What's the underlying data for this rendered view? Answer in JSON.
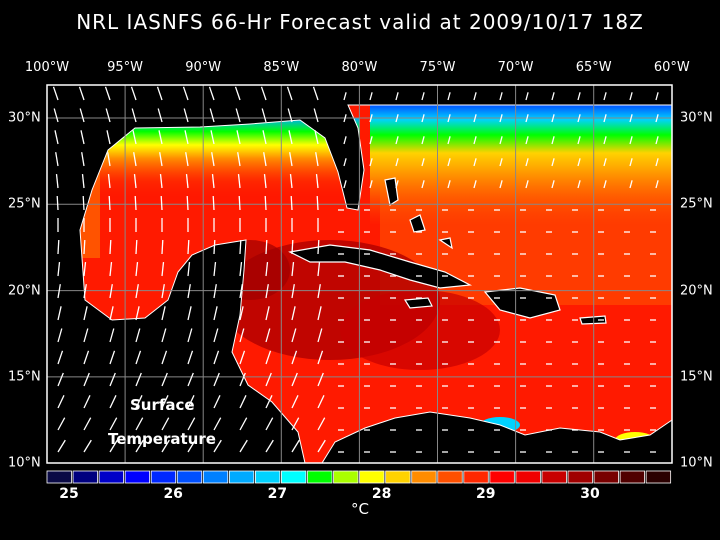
{
  "title": "NRL IASNFS  66-Hr Forecast valid at 2009/10/17 18Z",
  "lon_labels": [
    "100°W",
    "95°W",
    "90°W",
    "85°W",
    "80°W",
    "75°W",
    "70°W",
    "65°W",
    "60°W"
  ],
  "lat_labels": [
    "30°N",
    "25°N",
    "20°N",
    "15°N",
    "10°N"
  ],
  "overlay_label": {
    "line1": "Surface",
    "line2": "Temperature"
  },
  "colorbar": {
    "labels": [
      "25",
      "26",
      "27",
      "28",
      "29",
      "30"
    ],
    "unit": "°C",
    "colors": [
      "#0a0a45",
      "#00007f",
      "#0000c8",
      "#0000ff",
      "#0028ff",
      "#0050ff",
      "#0080ff",
      "#00aaff",
      "#00d2ff",
      "#00ffff",
      "#00ff00",
      "#aaff00",
      "#ffff00",
      "#ffd200",
      "#ff8c00",
      "#ff5000",
      "#ff2800",
      "#ff0000",
      "#f00000",
      "#c80000",
      "#a00000",
      "#780000",
      "#500000",
      "#2a0000"
    ]
  }
}
